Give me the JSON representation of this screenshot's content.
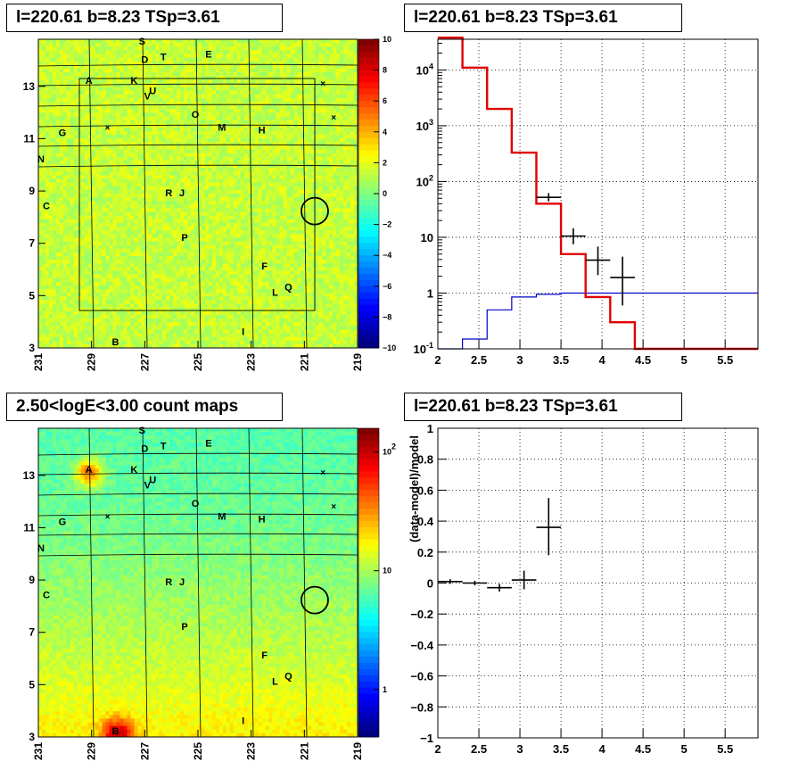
{
  "panels": {
    "tl_title": "l=220.61 b=8.23 TSp=3.61",
    "tr_title": "l=220.61 b=8.23 TSp=3.61",
    "bl_title": "2.50<logE<3.00 count maps",
    "br_title": "l=220.61 b=8.23 TSp=3.61"
  },
  "colors": {
    "map_green": "#2de060",
    "model_red": "#e00000",
    "bkg_blue": "#0000cc",
    "data_black": "#000000"
  },
  "chart_data": [
    {
      "type": "heatmap",
      "name": "residual significance map",
      "x_ticks": [
        "231",
        "229",
        "227",
        "225",
        "223",
        "221",
        "219"
      ],
      "y_ticks": [
        "3",
        "5",
        "7",
        "9",
        "11",
        "13"
      ],
      "xlim": [
        231,
        219
      ],
      "ylim": [
        3,
        14.8
      ],
      "colorbar_ticks": [
        "10",
        "8",
        "6",
        "4",
        "2",
        "0",
        "−2",
        "−4",
        "−6",
        "−8",
        "−10"
      ],
      "colorbar_range": [
        -10,
        10
      ],
      "source_labels": [
        {
          "t": "S",
          "l": 227.1,
          "b": 14.6
        },
        {
          "t": "D",
          "l": 227.0,
          "b": 13.9
        },
        {
          "t": "T",
          "l": 226.3,
          "b": 14.0
        },
        {
          "t": "E",
          "l": 224.6,
          "b": 14.1
        },
        {
          "t": "A",
          "l": 229.1,
          "b": 13.1
        },
        {
          "t": "K",
          "l": 227.4,
          "b": 13.1
        },
        {
          "t": "U",
          "l": 226.7,
          "b": 12.7
        },
        {
          "t": "V",
          "l": 226.9,
          "b": 12.5
        },
        {
          "t": "O",
          "l": 225.1,
          "b": 11.8
        },
        {
          "t": "M",
          "l": 224.1,
          "b": 11.3
        },
        {
          "t": "H",
          "l": 222.6,
          "b": 11.2
        },
        {
          "t": "G",
          "l": 230.1,
          "b": 11.1
        },
        {
          "t": "N",
          "l": 230.9,
          "b": 10.1
        },
        {
          "t": "R",
          "l": 226.1,
          "b": 8.8
        },
        {
          "t": "J",
          "l": 225.6,
          "b": 8.8
        },
        {
          "t": "C",
          "l": 230.7,
          "b": 8.3
        },
        {
          "t": "P",
          "l": 225.5,
          "b": 7.1
        },
        {
          "t": "F",
          "l": 222.5,
          "b": 6.0
        },
        {
          "t": "Q",
          "l": 221.6,
          "b": 5.2
        },
        {
          "t": "L",
          "l": 222.1,
          "b": 5.0
        },
        {
          "t": "I",
          "l": 223.3,
          "b": 3.5
        },
        {
          "t": "B",
          "l": 228.1,
          "b": 3.1
        }
      ],
      "markers": [
        {
          "l": 228.4,
          "b": 11.4
        },
        {
          "l": 220.3,
          "b": 13.1
        },
        {
          "l": 219.9,
          "b": 11.8
        }
      ],
      "circle": {
        "l": 220.61,
        "b": 8.23
      }
    },
    {
      "type": "line",
      "name": "spectrum",
      "x_ticks": [
        "2",
        "2.5",
        "3",
        "3.5",
        "4",
        "4.5",
        "5",
        "5.5"
      ],
      "y_ticks": [
        "10^-1",
        "1",
        "10",
        "10^2",
        "10^3",
        "10^4"
      ],
      "xlim": [
        2,
        5.9
      ],
      "ylim_log10": [
        -1,
        4.55
      ],
      "grid": true,
      "bin_edges": [
        2.0,
        2.3,
        2.6,
        2.9,
        3.2,
        3.5,
        3.8,
        4.1,
        4.4,
        4.7,
        5.0,
        5.3,
        5.6,
        5.9
      ],
      "series": [
        {
          "color": "red",
          "values": [
            38000,
            11000,
            2000,
            330,
            40,
            5,
            0.85,
            0.3,
            0.1,
            0.1,
            0.1,
            0.1,
            0.1
          ]
        },
        {
          "color": "blue",
          "values": [
            0.09,
            0.15,
            0.5,
            0.85,
            0.95,
            1,
            1,
            1,
            1,
            1,
            1,
            1,
            1
          ]
        }
      ],
      "data_points": [
        {
          "x": 3.35,
          "y": 52,
          "xerr": 0.15,
          "ylo": 44,
          "yhi": 62
        },
        {
          "x": 3.65,
          "y": 10.5,
          "xerr": 0.15,
          "ylo": 7.5,
          "yhi": 14.5
        },
        {
          "x": 3.95,
          "y": 3.9,
          "xerr": 0.15,
          "ylo": 2.1,
          "yhi": 6.8
        },
        {
          "x": 4.25,
          "y": 1.9,
          "xerr": 0.15,
          "ylo": 0.6,
          "yhi": 4.5
        }
      ]
    },
    {
      "type": "heatmap",
      "name": "count map",
      "x_ticks": [
        "231",
        "229",
        "227",
        "225",
        "223",
        "221",
        "219"
      ],
      "y_ticks": [
        "3",
        "5",
        "7",
        "9",
        "11",
        "13"
      ],
      "xlim": [
        231,
        219
      ],
      "ylim": [
        3,
        14.8
      ],
      "colorbar_ticks": [
        "10^2",
        "10",
        "1"
      ],
      "colorbar_log10_range": [
        -0.4,
        2.2
      ]
    },
    {
      "type": "scatter",
      "name": "residuals",
      "ylabel": "(data-model)/model",
      "x_ticks": [
        "2",
        "2.5",
        "3",
        "3.5",
        "4",
        "4.5",
        "5",
        "5.5"
      ],
      "y_ticks": [
        "1",
        "0.8",
        "0.6",
        "0.4",
        "0.2",
        "0",
        "−0.2",
        "−0.4",
        "−0.6",
        "−0.8",
        "−1"
      ],
      "xlim": [
        2,
        5.9
      ],
      "ylim": [
        -1,
        1
      ],
      "grid": true,
      "points": [
        {
          "x": 2.15,
          "y": 0.01,
          "xerr": 0.15,
          "ylo": -0.005,
          "yhi": 0.025
        },
        {
          "x": 2.45,
          "y": 0.0,
          "xerr": 0.15,
          "ylo": -0.015,
          "yhi": 0.015
        },
        {
          "x": 2.75,
          "y": -0.03,
          "xerr": 0.15,
          "ylo": -0.055,
          "yhi": -0.005
        },
        {
          "x": 3.05,
          "y": 0.02,
          "xerr": 0.15,
          "ylo": -0.04,
          "yhi": 0.08
        },
        {
          "x": 3.35,
          "y": 0.36,
          "xerr": 0.15,
          "ylo": 0.18,
          "yhi": 0.55
        }
      ]
    }
  ]
}
